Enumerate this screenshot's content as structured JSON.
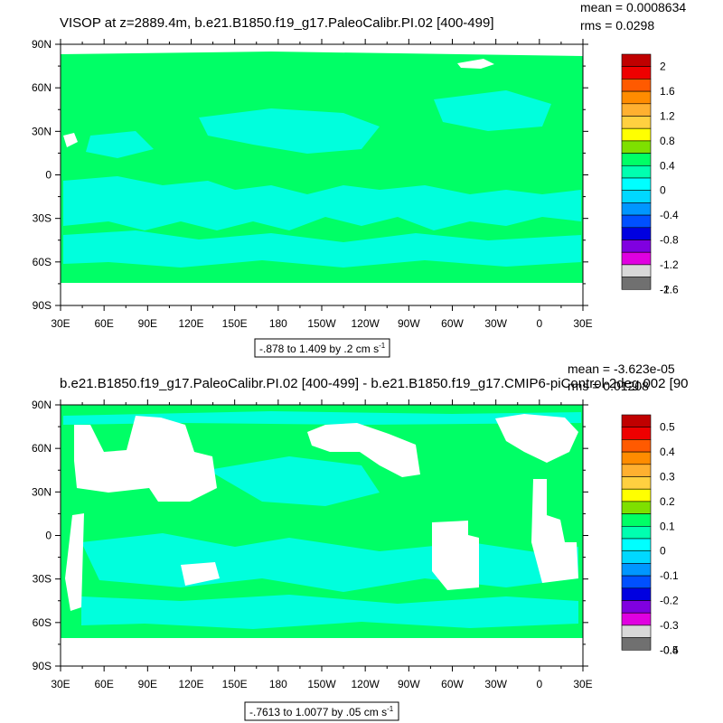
{
  "panels": [
    {
      "title": "VISOP at z=2889.4m, b.e21.B1850.f19_g17.PaleoCalibr.PI.02 [400-499]",
      "stats": [
        "mean = 0.0008634",
        "rms = 0.0298"
      ],
      "range_text": "-.878 to 1.409 by .2 cm s",
      "range_sup": "-1",
      "colorbar_labels": [
        "2",
        "1.6",
        "1.2",
        "0.8",
        "0.4",
        "0",
        "-0.4",
        "-0.8",
        "-1.2",
        "-1.6",
        "-2"
      ]
    },
    {
      "title": "b.e21.B1850.f19_g17.PaleoCalibr.PI.02 [400-499] - b.e21.B1850.f19_g17.CMIP6-piControl-2deg.002 [90",
      "stats": [
        "mean = -3.623e-05",
        "rms = 0.01208"
      ],
      "range_text": "-.7613 to 1.0077 by .05 cm s",
      "range_sup": "-1",
      "colorbar_labels": [
        "0.5",
        "0.4",
        "0.3",
        "0.2",
        "0.1",
        "0",
        "-0.1",
        "-0.2",
        "-0.3",
        "-0.4",
        "-0.5"
      ]
    }
  ],
  "lat_labels": [
    "90N",
    "60N",
    "30N",
    "0",
    "30S",
    "60S",
    "90S"
  ],
  "lon_labels": [
    "30E",
    "60E",
    "90E",
    "120E",
    "150E",
    "180",
    "150W",
    "120W",
    "90W",
    "60W",
    "30W",
    "0",
    "30E"
  ],
  "colorbar_colors": [
    "#c00000",
    "#ee0000",
    "#ff5a00",
    "#ff8c00",
    "#ffb030",
    "#ffd040",
    "#ffff00",
    "#7ee000",
    "#00ff66",
    "#00ffb0",
    "#00ffff",
    "#00d8ff",
    "#0096ff",
    "#0050ff",
    "#0000e0",
    "#8000e0",
    "#e000e0",
    "#d8d8d8",
    "#707070"
  ],
  "map_colors": {
    "field": "#00ff66",
    "negative": "#00ffdd",
    "land": "#ffffff"
  }
}
